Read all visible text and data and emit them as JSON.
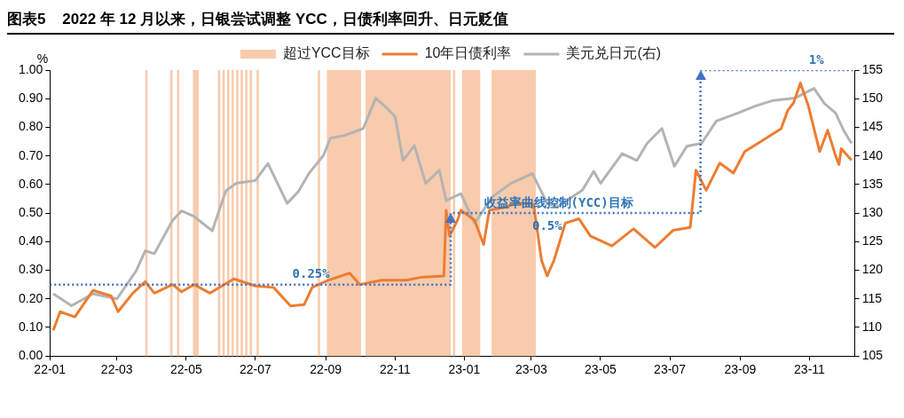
{
  "chart_data": {
    "type": "line",
    "title": "图表5    2022 年 12 月以来，日银尝试调整 YCC，日债利率回升、日元贬值",
    "ylabel": "%",
    "xlim": [
      "2022-01-01",
      "2023-12-11"
    ],
    "xticks": [
      {
        "value": "2022-01-01",
        "label": "22-01"
      },
      {
        "value": "2022-03-01",
        "label": "22-03"
      },
      {
        "value": "2022-05-01",
        "label": "22-05"
      },
      {
        "value": "2022-07-01",
        "label": "22-07"
      },
      {
        "value": "2022-09-01",
        "label": "22-09"
      },
      {
        "value": "2022-11-01",
        "label": "22-11"
      },
      {
        "value": "2023-01-01",
        "label": "23-01"
      },
      {
        "value": "2023-03-01",
        "label": "23-03"
      },
      {
        "value": "2023-05-01",
        "label": "23-05"
      },
      {
        "value": "2023-07-01",
        "label": "23-07"
      },
      {
        "value": "2023-09-01",
        "label": "23-09"
      },
      {
        "value": "2023-11-01",
        "label": "23-11"
      }
    ],
    "ylim": [
      0,
      1
    ],
    "yticks": [
      {
        "value": 0,
        "label": "0.00"
      },
      {
        "value": 0.1,
        "label": "0.10"
      },
      {
        "value": 0.2,
        "label": "0.20"
      },
      {
        "value": 0.3,
        "label": "0.30"
      },
      {
        "value": 0.4,
        "label": "0.40"
      },
      {
        "value": 0.5,
        "label": "0.50"
      },
      {
        "value": 0.6,
        "label": "0.60"
      },
      {
        "value": 0.7,
        "label": "0.70"
      },
      {
        "value": 0.8,
        "label": "0.80"
      },
      {
        "value": 0.9,
        "label": "0.90"
      },
      {
        "value": 1,
        "label": "1.00"
      }
    ],
    "y2lim": [
      105,
      155
    ],
    "y2ticks": [
      105,
      110,
      115,
      120,
      125,
      130,
      135,
      140,
      145,
      150,
      155
    ],
    "grid": false,
    "legend": "top",
    "marker": "none",
    "bands": [
      {
        "axis": "x",
        "from": "2022-03-26",
        "to": "2022-03-28",
        "color": "#f8cbad",
        "label": "超过YCC目标"
      },
      {
        "axis": "x",
        "from": "2022-04-17",
        "to": "2022-04-19",
        "color": "#f8cbad"
      },
      {
        "axis": "x",
        "from": "2022-04-23",
        "to": "2022-04-25",
        "color": "#f8cbad"
      },
      {
        "axis": "x",
        "from": "2022-05-07",
        "to": "2022-05-12",
        "color": "#f8cbad"
      },
      {
        "axis": "x",
        "from": "2022-05-29",
        "to": "2022-05-31",
        "color": "#f8cbad"
      },
      {
        "axis": "x",
        "from": "2022-06-02",
        "to": "2022-06-04",
        "color": "#f8cbad"
      },
      {
        "axis": "x",
        "from": "2022-06-06",
        "to": "2022-06-08",
        "color": "#f8cbad"
      },
      {
        "axis": "x",
        "from": "2022-06-10",
        "to": "2022-06-12",
        "color": "#f8cbad"
      },
      {
        "axis": "x",
        "from": "2022-06-14",
        "to": "2022-06-16",
        "color": "#f8cbad"
      },
      {
        "axis": "x",
        "from": "2022-06-18",
        "to": "2022-06-20",
        "color": "#f8cbad"
      },
      {
        "axis": "x",
        "from": "2022-06-22",
        "to": "2022-06-24",
        "color": "#f8cbad"
      },
      {
        "axis": "x",
        "from": "2022-06-26",
        "to": "2022-06-28",
        "color": "#f8cbad"
      },
      {
        "axis": "x",
        "from": "2022-07-02",
        "to": "2022-07-04",
        "color": "#f8cbad"
      },
      {
        "axis": "x",
        "from": "2022-08-25",
        "to": "2022-08-27",
        "color": "#f8cbad"
      },
      {
        "axis": "x",
        "from": "2022-09-02",
        "to": "2022-10-02",
        "color": "#f8cbad"
      },
      {
        "axis": "x",
        "from": "2022-10-06",
        "to": "2022-12-20",
        "color": "#f8cbad"
      },
      {
        "axis": "x",
        "from": "2022-12-22",
        "to": "2022-12-24",
        "color": "#f8cbad"
      },
      {
        "axis": "x",
        "from": "2022-12-30",
        "to": "2023-01-15",
        "color": "#f8cbad"
      },
      {
        "axis": "x",
        "from": "2023-01-25",
        "to": "2023-03-05",
        "color": "#f8cbad"
      }
    ],
    "series": [
      {
        "name": "10年日债利率",
        "color": "#ed7d31",
        "x": [
          "2022-01-04",
          "2022-01-10",
          "2022-01-23",
          "2022-02-08",
          "2022-02-24",
          "2022-03-02",
          "2022-03-15",
          "2022-03-26",
          "2022-04-03",
          "2022-04-19",
          "2022-04-27",
          "2022-05-08",
          "2022-05-22",
          "2022-06-12",
          "2022-07-01",
          "2022-07-17",
          "2022-08-01",
          "2022-08-13",
          "2022-08-20",
          "2022-09-03",
          "2022-09-22",
          "2022-10-01",
          "2022-10-20",
          "2022-11-11",
          "2022-11-23",
          "2022-12-14",
          "2022-12-16",
          "2022-12-19",
          "2022-12-26",
          "2022-12-29",
          "2023-01-10",
          "2023-01-18",
          "2023-01-23",
          "2023-02-05",
          "2023-02-17",
          "2023-03-03",
          "2023-03-10",
          "2023-03-15",
          "2023-03-21",
          "2023-03-31",
          "2023-04-12",
          "2023-04-22",
          "2023-05-11",
          "2023-05-30",
          "2023-06-18",
          "2023-07-04",
          "2023-07-19",
          "2023-07-24",
          "2023-08-02",
          "2023-08-14",
          "2023-08-26",
          "2023-09-05",
          "2023-09-21",
          "2023-10-07",
          "2023-10-13",
          "2023-10-18",
          "2023-10-24",
          "2023-10-31",
          "2023-11-10",
          "2023-11-17",
          "2023-11-24",
          "2023-11-27",
          "2023-11-29",
          "2023-12-08"
        ],
        "values": [
          0.09,
          0.155,
          0.137,
          0.23,
          0.21,
          0.155,
          0.22,
          0.26,
          0.22,
          0.25,
          0.225,
          0.25,
          0.22,
          0.27,
          0.245,
          0.24,
          0.175,
          0.18,
          0.24,
          0.265,
          0.29,
          0.25,
          0.265,
          0.265,
          0.275,
          0.28,
          0.51,
          0.42,
          0.475,
          0.51,
          0.475,
          0.39,
          0.51,
          0.52,
          0.535,
          0.53,
          0.335,
          0.28,
          0.335,
          0.465,
          0.48,
          0.42,
          0.385,
          0.445,
          0.38,
          0.44,
          0.45,
          0.65,
          0.58,
          0.675,
          0.64,
          0.715,
          0.755,
          0.795,
          0.86,
          0.885,
          0.955,
          0.875,
          0.715,
          0.79,
          0.7,
          0.67,
          0.725,
          0.685
        ]
      },
      {
        "name": "美元兑日元(右)",
        "axis": "y2",
        "color": "#b4b4b4",
        "x": [
          "2022-01-04",
          "2022-01-20",
          "2022-02-08",
          "2022-03-01",
          "2022-03-18",
          "2022-03-26",
          "2022-04-03",
          "2022-04-19",
          "2022-04-27",
          "2022-05-08",
          "2022-05-24",
          "2022-06-05",
          "2022-06-14",
          "2022-07-01",
          "2022-07-12",
          "2022-07-29",
          "2022-08-08",
          "2022-08-17",
          "2022-08-30",
          "2022-09-05",
          "2022-09-18",
          "2022-10-04",
          "2022-10-15",
          "2022-10-23",
          "2022-11-01",
          "2022-11-08",
          "2022-11-18",
          "2022-11-28",
          "2022-12-10",
          "2022-12-16",
          "2022-12-29",
          "2023-01-10",
          "2023-01-26",
          "2023-02-11",
          "2023-03-02",
          "2023-03-15",
          "2023-03-24",
          "2023-04-15",
          "2023-04-25",
          "2023-05-01",
          "2023-05-20",
          "2023-06-02",
          "2023-06-11",
          "2023-06-24",
          "2023-07-05",
          "2023-07-16",
          "2023-07-29",
          "2023-08-11",
          "2023-08-30",
          "2023-09-14",
          "2023-09-30",
          "2023-10-19",
          "2023-11-05",
          "2023-11-14",
          "2023-11-24",
          "2023-12-01",
          "2023-12-08"
        ],
        "values": [
          115.9,
          113.8,
          115.9,
          115,
          119.9,
          123.4,
          122.9,
          128.7,
          130.4,
          129.4,
          126.9,
          133.9,
          135.2,
          135.7,
          138.7,
          131.7,
          133.8,
          136.9,
          140.1,
          143.1,
          143.6,
          144.8,
          150.1,
          148.7,
          146.9,
          139.2,
          141.8,
          135.2,
          137.5,
          132.2,
          133.4,
          128.2,
          132.9,
          135.2,
          136.9,
          131.7,
          131.1,
          134,
          137.3,
          135.2,
          140.4,
          139.2,
          142.2,
          144.8,
          138.2,
          141.7,
          142.2,
          146.1,
          147.5,
          148.7,
          149.7,
          150.1,
          151.8,
          149.2,
          147.5,
          144.5,
          142.2
        ]
      },
      {
        "type": "step",
        "color": "#4472c4",
        "line_style": "dotted",
        "x": [
          "2022-01-01",
          "2022-12-20",
          "2023-07-28",
          "2023-12-11"
        ],
        "values": [
          0.25,
          0.5,
          1,
          1
        ]
      }
    ],
    "annotations": [
      {
        "text": "0.25%",
        "x": "2022-08-19",
        "y": 0.25
      },
      {
        "text": "收益率曲线控制(YCC)目标",
        "x": "2023-03-25",
        "y": 0.5
      },
      {
        "text": "0.5%",
        "x": "2023-03-15",
        "y": 0.5
      },
      {
        "text": "1%",
        "x": "2023-11-07",
        "y": 1
      }
    ]
  }
}
